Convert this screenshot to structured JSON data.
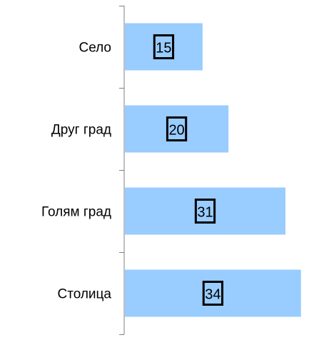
{
  "chart_data": {
    "type": "bar",
    "orientation": "horizontal",
    "categories": [
      "Село",
      "Друг град",
      "Голям град",
      "Столица"
    ],
    "values": [
      15,
      20,
      31,
      34
    ],
    "xlim": [
      0,
      35
    ],
    "bar_color": "#99ccff",
    "grid": false,
    "legend": "none",
    "data_labels": "boxed, centered in bar"
  }
}
